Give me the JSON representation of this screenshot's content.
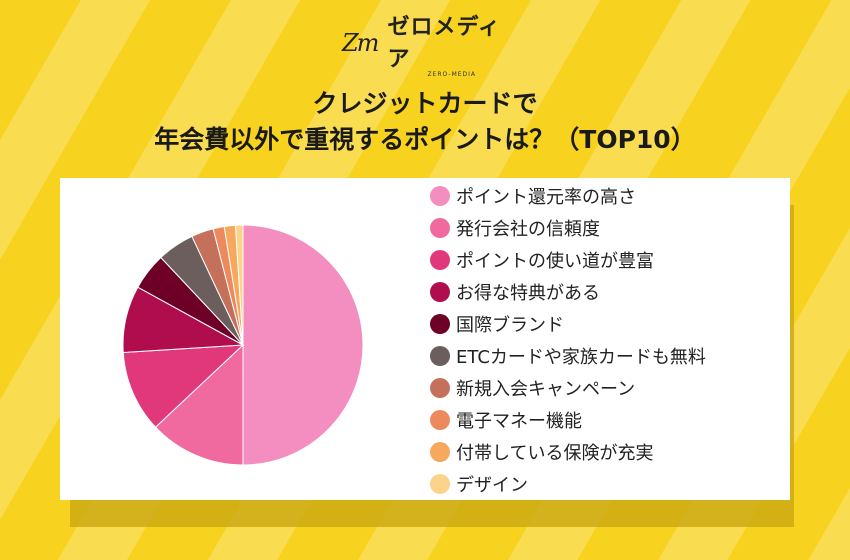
{
  "brand": {
    "mark": "Zm",
    "name": "ゼロメディア",
    "sub": "ZERO-MEDIA"
  },
  "title": {
    "line1": "クレジットカードで",
    "line2": "年会費以外で重視するポイントは？（TOP10）"
  },
  "chart_data": {
    "type": "pie",
    "title": "",
    "categories": [
      "ポイント還元率の高さ",
      "発行会社の信頼度",
      "ポイントの使い道が豊富",
      "お得な特典がある",
      "国際ブランド",
      "ETCカードや家族カードも無料",
      "新規入会キャンペーン",
      "電子マネー機能",
      "付帯している保険が充実",
      "デザイン"
    ],
    "values": [
      50.0,
      13.0,
      11.0,
      9.0,
      5.0,
      5.0,
      3.0,
      1.5,
      1.5,
      1.0
    ],
    "colors": [
      "#f58ec0",
      "#f06aa0",
      "#e0387a",
      "#b00d4e",
      "#6e0028",
      "#6b5e5c",
      "#c4705a",
      "#ec8a5e",
      "#f6a95e",
      "#fbd38a"
    ],
    "legend_placement": "right"
  }
}
